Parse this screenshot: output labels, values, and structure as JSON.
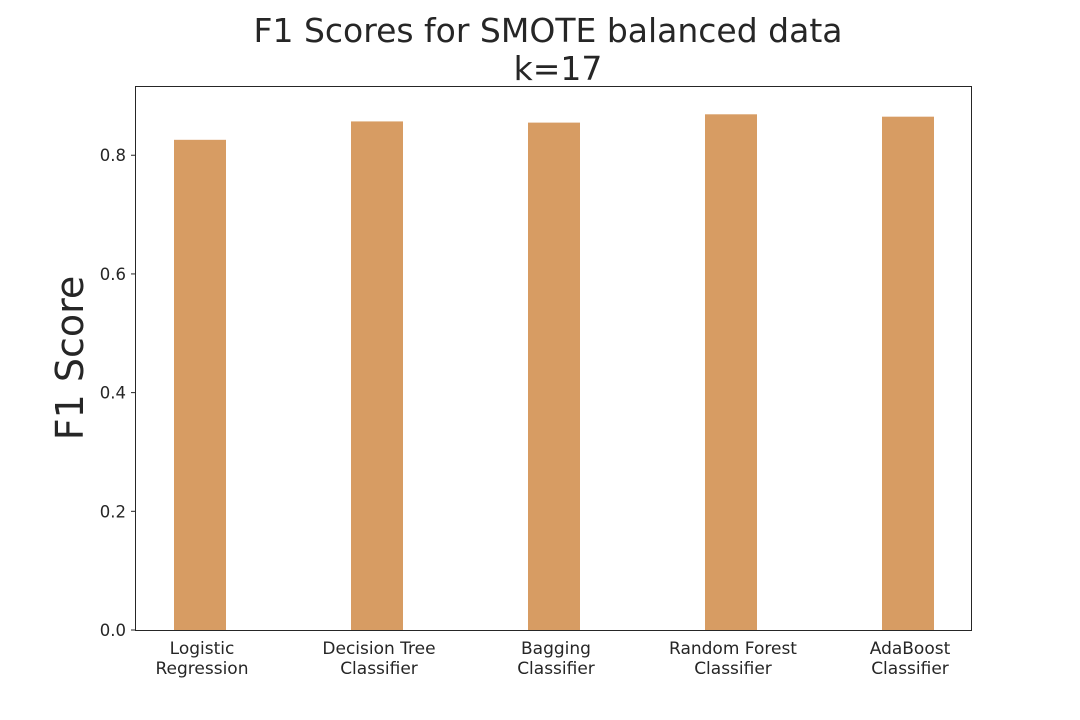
{
  "chart_data": {
    "type": "bar",
    "title_lines": [
      "F1 Scores for SMOTE balanced data",
      "k=17"
    ],
    "ylabel": "F1 Score",
    "xlabel": "",
    "categories": [
      [
        "Logistic",
        "Regression"
      ],
      [
        "Decision Tree",
        "Classifier"
      ],
      [
        "Bagging",
        "Classifier"
      ],
      [
        "Random Forest",
        "Classifier"
      ],
      [
        "AdaBoost",
        "Classifier"
      ]
    ],
    "values": [
      0.826,
      0.857,
      0.855,
      0.869,
      0.865
    ],
    "ylim": [
      0,
      0.915
    ],
    "yticks": [
      0.0,
      0.2,
      0.4,
      0.6,
      0.8
    ],
    "ytick_labels": [
      "0.0",
      "0.2",
      "0.4",
      "0.6",
      "0.8"
    ],
    "grid": false,
    "bar_color": "#d79c63"
  }
}
